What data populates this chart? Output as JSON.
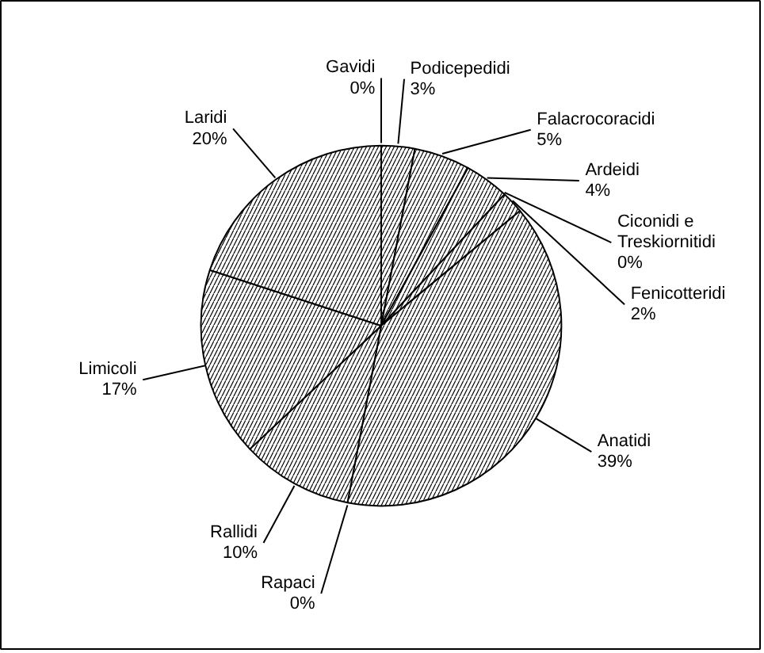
{
  "chart_data": {
    "type": "pie",
    "categories": [
      "Gavidi",
      "Podicepedidi",
      "Falacrocoracidi",
      "Ardeidi",
      "Ciconidi e Treskiornitidi",
      "Fenicotteridi",
      "Anatidi",
      "Rapaci",
      "Rallidi",
      "Limicoli",
      "Laridi"
    ],
    "values": [
      0,
      3,
      5,
      4,
      0,
      2,
      39,
      0,
      10,
      17,
      20
    ],
    "value_labels": [
      "0%",
      "3%",
      "5%",
      "4%",
      "0%",
      "2%",
      "39%",
      "0%",
      "10%",
      "17%",
      "20%"
    ],
    "colors": [
      "#ffffff",
      "#ffffff",
      "#ffffff",
      "#ffffff",
      "#ffffff",
      "#ffffff",
      "#ffffff",
      "#ffffff",
      "#ffffff",
      "#ffffff",
      "#ffffff"
    ]
  }
}
